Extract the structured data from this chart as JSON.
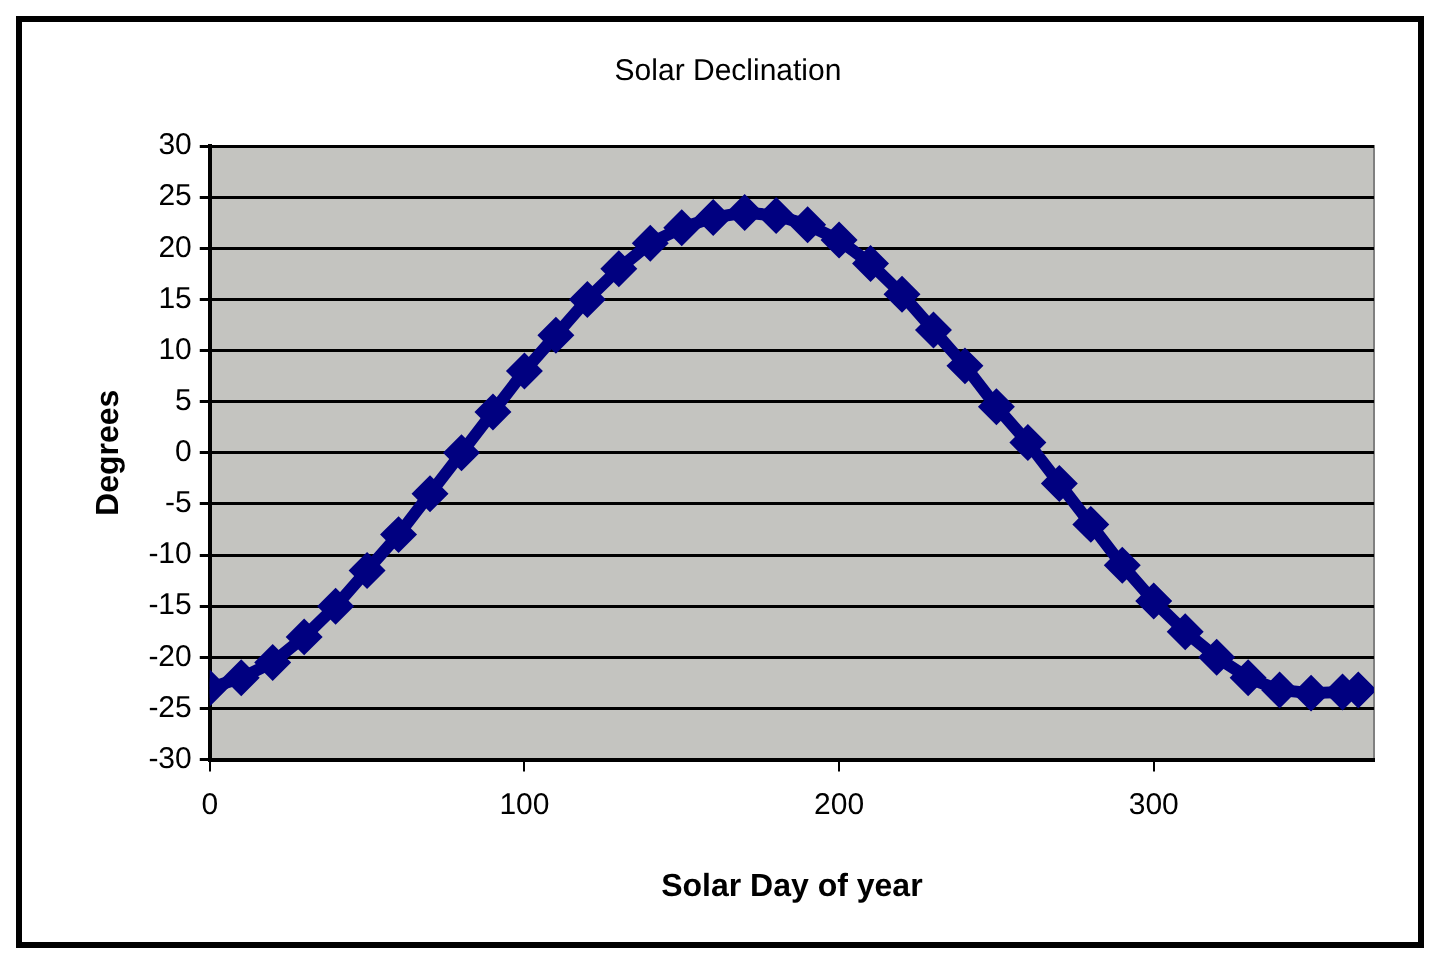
{
  "chart_data": {
    "type": "line",
    "title": "Solar Declination",
    "xlabel": "Solar Day of year",
    "ylabel": "Degrees",
    "x": [
      0,
      10,
      20,
      30,
      40,
      50,
      60,
      70,
      80,
      90,
      100,
      110,
      120,
      130,
      140,
      150,
      160,
      170,
      180,
      190,
      200,
      210,
      220,
      230,
      240,
      250,
      260,
      270,
      280,
      290,
      300,
      310,
      320,
      330,
      340,
      350,
      360,
      365
    ],
    "series": [
      {
        "color": "#000080",
        "values": [
          -23,
          -22,
          -20.5,
          -18,
          -15,
          -11.5,
          -8,
          -4,
          0,
          4,
          8,
          11.5,
          15,
          18,
          20.5,
          22,
          23,
          23.5,
          23.2,
          22.3,
          20.8,
          18.5,
          15.5,
          12,
          8.5,
          4.5,
          1,
          -3,
          -7,
          -11,
          -14.5,
          -17.5,
          -20,
          -22,
          -23.2,
          -23.5,
          -23.4,
          -23.2
        ]
      }
    ],
    "xlim": [
      0,
      370
    ],
    "xticks": [
      0,
      100,
      200,
      300
    ],
    "ylim": [
      -30,
      30
    ],
    "yticks": [
      -30,
      -25,
      -20,
      -15,
      -10,
      -5,
      0,
      5,
      10,
      15,
      20,
      25,
      30
    ],
    "grid": "y",
    "legend": false,
    "marker": "diamond",
    "line_style": "solid"
  }
}
